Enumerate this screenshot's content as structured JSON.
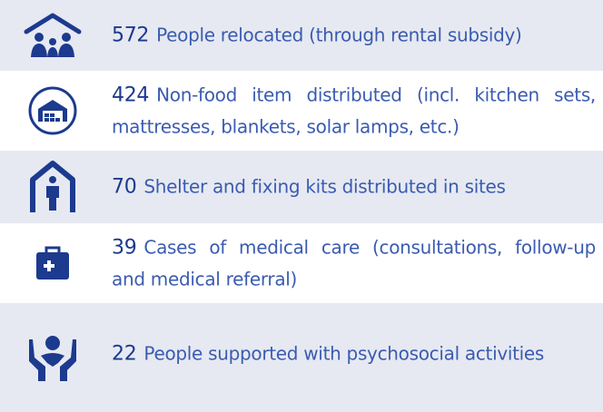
{
  "items": [
    {
      "value": "572",
      "text": "People relocated (through rental subsidy)"
    },
    {
      "value": "424",
      "text": "Non-food item distributed (incl. kitchen sets, mattresses, blankets, solar lamps, etc.)"
    },
    {
      "value": "70",
      "text": "Shelter and fixing kits distributed in sites"
    },
    {
      "value": "39",
      "text": "Cases of medical care (consultations, follow-up and medical referral)"
    },
    {
      "value": "22",
      "text": "People supported with psychosocial activities"
    }
  ]
}
